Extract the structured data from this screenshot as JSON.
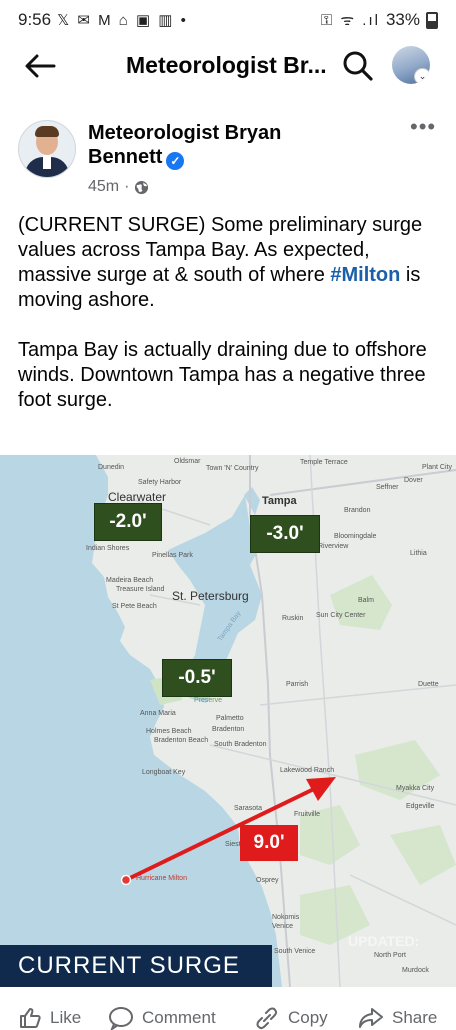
{
  "status_bar": {
    "time": "9:56",
    "notification_icons": "𝕏 ✉ M ⌂ ▣ ▥ •",
    "signal_icons": "⚿ ᯤ .ıl",
    "battery": "33%"
  },
  "nav": {
    "title": "Meteorologist Br..."
  },
  "post": {
    "author": "Meteorologist Bryan Bennett",
    "time_ago": "45m",
    "more": "•••",
    "text_p1_a": "(CURRENT SURGE) Some preliminary surge values across Tampa Bay.  As expected, massive surge at & south of where ",
    "hashtag": "#Milton",
    "text_p1_b": " is moving ashore.",
    "text_p2": "Tampa Bay is actually draining due to offshore winds.  Downtown Tampa has a negative three foot surge."
  },
  "map": {
    "surge_values": [
      {
        "label": "-2.0'",
        "name": "surge-label-west"
      },
      {
        "label": "-3.0'",
        "name": "surge-label-tampa"
      },
      {
        "label": "-0.5'",
        "name": "surge-label-south-bay"
      },
      {
        "label": "9.0'",
        "name": "surge-label-sarasota"
      }
    ],
    "caption": "CURRENT SURGE",
    "watermark": "UPDATED:",
    "place_labels": {
      "oldsmar": "Oldsmar",
      "dunedin": "Dunedin",
      "town_n_country": "Town 'N' Country",
      "safety_harbor": "Safety Harbor",
      "clearwater": "Clearwater",
      "tampa": "Tampa",
      "temple_terrace": "Temple Terrace",
      "plant_city": "Plant City",
      "dover": "Dover",
      "seffner": "Seffner",
      "brandon": "Brandon",
      "bloomingdale": "Bloomingdale",
      "riverview": "Riverview",
      "lithia": "Lithia",
      "indian_shores": "Indian Shores",
      "pinellas_park": "Pinellas Park",
      "madeira_beach": "Madeira Beach",
      "treasure_island": "Treasure Island",
      "st_petersburg": "St. Petersburg",
      "st_pete_beach": "St Pete Beach",
      "tampa_bay": "Tampa Bay",
      "balm": "Balm",
      "ruskin": "Ruskin",
      "sun_city_center": "Sun City Center",
      "parrish": "Parrish",
      "duette": "Duette",
      "anna_maria": "Anna Maria",
      "palmetto": "Palmetto",
      "holmes_beach": "Holmes Beach",
      "bradenton_beach": "Bradenton Beach",
      "bradenton": "Bradenton",
      "south_bradenton": "South Bradenton",
      "longboat_key": "Longboat Key",
      "lakewood_ranch": "Lakewood Ranch",
      "myakka_city": "Myakka City",
      "edgeville": "Edgeville",
      "sarasota": "Sarasota",
      "fruitville": "Fruitville",
      "siesta": "Siesta",
      "osprey": "Osprey",
      "nokomis": "Nokomis",
      "venice": "Venice",
      "south_venice": "South Venice",
      "north_port": "North Port",
      "murdock": "Murdock",
      "preserve": "Preserve",
      "hurricane_milton": "Hurricane Milton"
    }
  },
  "actions": {
    "like": "Like",
    "comment": "Comment",
    "copy": "Copy",
    "share": "Share"
  }
}
